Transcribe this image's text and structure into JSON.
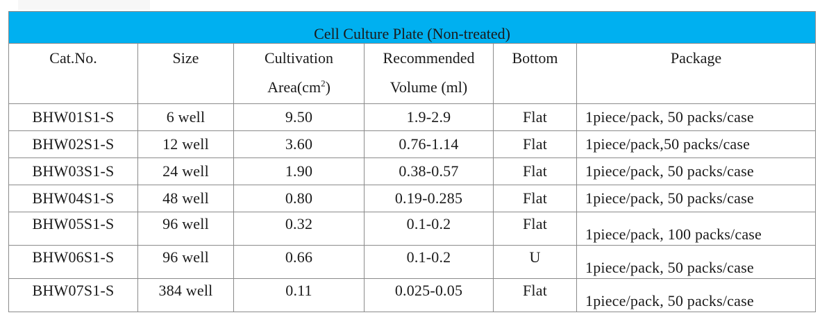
{
  "table": {
    "title": "Cell Culture Plate (Non-treated)",
    "headers": {
      "cat_no": "Cat.No.",
      "size": "Size",
      "cultivation_line1": "Cultivation",
      "cultivation_line2": "Area(cm",
      "cultivation_sup": "2",
      "cultivation_close": ")",
      "volume_line1": "Recommended",
      "volume_line2": "Volume (ml)",
      "bottom": "Bottom",
      "package": "Package"
    },
    "rows": [
      {
        "cat": "BHW01S1-S",
        "size": "6 well",
        "area": "9.50",
        "volume": "1.9-2.9",
        "bottom": "Flat",
        "package": "1piece/pack, 50 packs/case"
      },
      {
        "cat": "BHW02S1-S",
        "size": "12 well",
        "area": "3.60",
        "volume": "0.76-1.14",
        "bottom": "Flat",
        "package": "1piece/pack,50 packs/case"
      },
      {
        "cat": "BHW03S1-S",
        "size": "24 well",
        "area": "1.90",
        "volume": "0.38-0.57",
        "bottom": "Flat",
        "package": "1piece/pack, 50 packs/case"
      },
      {
        "cat": "BHW04S1-S",
        "size": "48 well",
        "area": "0.80",
        "volume": "0.19-0.285",
        "bottom": "Flat",
        "package": "1piece/pack, 50 packs/case"
      },
      {
        "cat": "BHW05S1-S",
        "size": "96 well",
        "area": "0.32",
        "volume": "0.1-0.2",
        "bottom": "Flat",
        "package": "1piece/pack, 100 packs/case"
      },
      {
        "cat": "BHW06S1-S",
        "size": "96 well",
        "area": "0.66",
        "volume": "0.1-0.2",
        "bottom": "U",
        "package": "1piece/pack, 50 packs/case"
      },
      {
        "cat": "BHW07S1-S",
        "size": "384 well",
        "area": "0.11",
        "volume": "0.025-0.05",
        "bottom": "Flat",
        "package": "1piece/pack, 50 packs/case"
      }
    ]
  },
  "colors": {
    "title_background": "#00b0f0",
    "border": "#8a8a8a"
  }
}
